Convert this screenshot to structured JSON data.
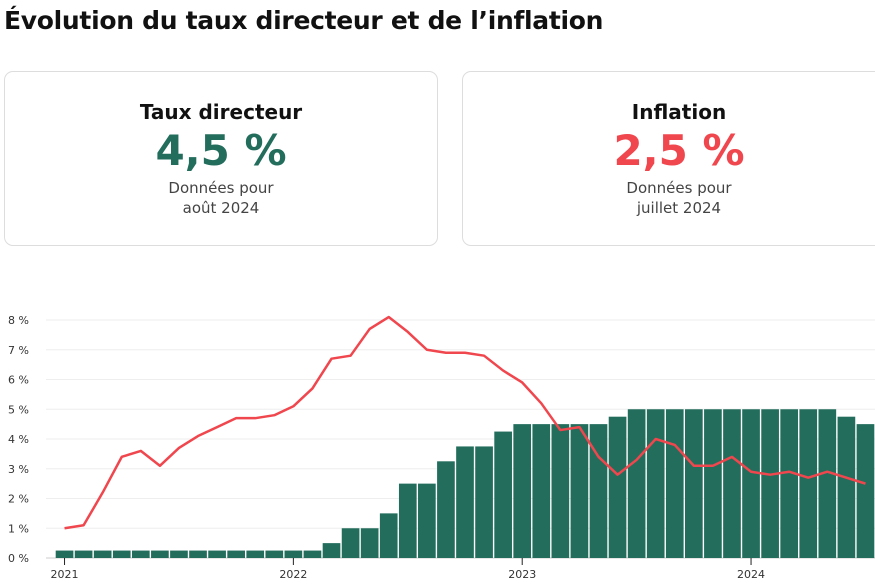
{
  "title": "Évolution du taux directeur et de l’inflation",
  "cards": [
    {
      "label": "Taux directeur",
      "value": "4,5 %",
      "note": "Données pour août 2024",
      "color": "#226d5c"
    },
    {
      "label": "Inflation",
      "value": "2,5 %",
      "note": "Données pour juillet 2024",
      "color": "#f0464d"
    }
  ],
  "chart_data": {
    "type": "bar+line",
    "start": "2021-01",
    "frequency": "monthly",
    "ylim": [
      0,
      8
    ],
    "yticks": [
      "0 %",
      "1 %",
      "2 %",
      "3 %",
      "4 %",
      "5 %",
      "6 %",
      "7 %",
      "8 %"
    ],
    "xticks": [
      "2021",
      "2022",
      "2023",
      "2024"
    ],
    "grid": true,
    "series": [
      {
        "type": "bar",
        "color": "#226d5c",
        "values": [
          0.25,
          0.25,
          0.25,
          0.25,
          0.25,
          0.25,
          0.25,
          0.25,
          0.25,
          0.25,
          0.25,
          0.25,
          0.25,
          0.25,
          0.5,
          1.0,
          1.0,
          1.5,
          2.5,
          2.5,
          3.25,
          3.75,
          3.75,
          4.25,
          4.5,
          4.5,
          4.5,
          4.5,
          4.5,
          4.75,
          5.0,
          5.0,
          5.0,
          5.0,
          5.0,
          5.0,
          5.0,
          5.0,
          5.0,
          5.0,
          5.0,
          4.75,
          4.5
        ]
      },
      {
        "type": "line",
        "color": "#f0464d",
        "values": [
          1.0,
          1.1,
          2.2,
          3.4,
          3.6,
          3.1,
          3.7,
          4.1,
          4.4,
          4.7,
          4.7,
          4.8,
          5.1,
          5.7,
          6.7,
          6.8,
          7.7,
          8.1,
          7.6,
          7.0,
          6.9,
          6.9,
          6.8,
          6.3,
          5.9,
          5.2,
          4.3,
          4.4,
          3.4,
          2.8,
          3.3,
          4.0,
          3.8,
          3.1,
          3.1,
          3.4,
          2.9,
          2.8,
          2.9,
          2.7,
          2.9,
          2.7,
          2.5
        ]
      }
    ]
  }
}
